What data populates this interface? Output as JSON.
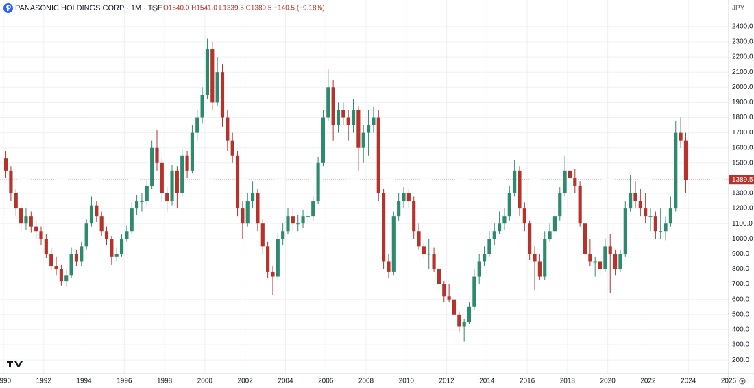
{
  "chart_data": {
    "type": "candlestick",
    "title": "PANASONIC HOLDINGS CORP · 1M · TSE",
    "ohlc_text": "O1540.0 H1541.0 L1339.5 C1389.5 −140.5 (−9.18%)",
    "currency": "JPY",
    "last_price": 1389.5,
    "up_color": "#2e8a6e",
    "down_color": "#b5332a",
    "grid": true,
    "xlim": [
      1989.83,
      2026
    ],
    "xticks": [
      1990,
      1992,
      1994,
      1996,
      1998,
      2000,
      2002,
      2004,
      2006,
      2008,
      2010,
      2012,
      2014,
      2016,
      2018,
      2020,
      2022,
      2024,
      2026
    ],
    "ylim": [
      110,
      2576
    ],
    "yticks": [
      {
        "value": 200,
        "label": "200.0"
      },
      {
        "value": 300,
        "label": "300.0"
      },
      {
        "value": 400,
        "label": "400.0"
      },
      {
        "value": 500,
        "label": "500.0"
      },
      {
        "value": 600,
        "label": "600.0"
      },
      {
        "value": 700,
        "label": "700.0"
      },
      {
        "value": 800,
        "label": "800.0"
      },
      {
        "value": 900,
        "label": "900.0"
      },
      {
        "value": 1000,
        "label": "1000.0"
      },
      {
        "value": 1100,
        "label": "1100.0"
      },
      {
        "value": 1200,
        "label": "1200.0"
      },
      {
        "value": 1300,
        "label": "1300.0"
      },
      {
        "value": 1400,
        "label": "1400.0"
      },
      {
        "value": 1500,
        "label": "1500.0"
      },
      {
        "value": 1600,
        "label": "1600.0"
      },
      {
        "value": 1700,
        "label": "1700.0"
      },
      {
        "value": 1800,
        "label": "1800.0"
      },
      {
        "value": 1900,
        "label": "1900.0"
      },
      {
        "value": 2000,
        "label": "2000.0"
      },
      {
        "value": 2100,
        "label": "2100.0"
      },
      {
        "value": 2200,
        "label": "2200.0"
      },
      {
        "value": 2300,
        "label": "2300.0"
      },
      {
        "value": 2400,
        "label": "2400.0"
      }
    ],
    "x": [
      1990,
      1990.25,
      1990.5,
      1990.75,
      1991,
      1991.25,
      1991.5,
      1991.75,
      1992,
      1992.25,
      1992.5,
      1992.75,
      1993,
      1993.25,
      1993.5,
      1993.75,
      1994,
      1994.25,
      1994.5,
      1994.75,
      1995,
      1995.25,
      1995.5,
      1995.75,
      1996,
      1996.25,
      1996.5,
      1996.75,
      1997,
      1997.25,
      1997.5,
      1997.75,
      1998,
      1998.25,
      1998.5,
      1998.75,
      1999,
      1999.25,
      1999.5,
      1999.75,
      2000,
      2000.25,
      2000.5,
      2000.75,
      2001,
      2001.25,
      2001.5,
      2001.75,
      2002,
      2002.25,
      2002.5,
      2002.75,
      2003,
      2003.25,
      2003.5,
      2003.75,
      2004,
      2004.25,
      2004.5,
      2004.75,
      2005,
      2005.25,
      2005.5,
      2005.75,
      2006,
      2006.25,
      2006.5,
      2006.75,
      2007,
      2007.25,
      2007.5,
      2007.75,
      2008,
      2008.25,
      2008.5,
      2008.75,
      2009,
      2009.25,
      2009.5,
      2009.75,
      2010,
      2010.25,
      2010.5,
      2010.75,
      2011,
      2011.25,
      2011.5,
      2011.75,
      2012,
      2012.25,
      2012.5,
      2012.75,
      2013,
      2013.25,
      2013.5,
      2013.75,
      2014,
      2014.25,
      2014.5,
      2014.75,
      2015,
      2015.25,
      2015.5,
      2015.75,
      2016,
      2016.25,
      2016.5,
      2016.75,
      2017,
      2017.25,
      2017.5,
      2017.75,
      2018,
      2018.25,
      2018.5,
      2018.75,
      2019,
      2019.25,
      2019.5,
      2019.75,
      2020,
      2020.25,
      2020.5,
      2020.75,
      2021,
      2021.25,
      2021.5,
      2021.75,
      2022,
      2022.25,
      2022.5,
      2022.75,
      2023,
      2023.25,
      2023.5,
      2023.75
    ],
    "ohlc": [
      [
        1530,
        1580,
        1400,
        1450
      ],
      [
        1450,
        1480,
        1250,
        1300
      ],
      [
        1300,
        1330,
        1150,
        1200
      ],
      [
        1200,
        1230,
        1050,
        1100
      ],
      [
        1100,
        1200,
        1060,
        1150
      ],
      [
        1150,
        1180,
        1040,
        1080
      ],
      [
        1080,
        1120,
        1000,
        1050
      ],
      [
        1050,
        1080,
        960,
        1000
      ],
      [
        1000,
        1030,
        870,
        900
      ],
      [
        900,
        940,
        790,
        820
      ],
      [
        820,
        880,
        760,
        800
      ],
      [
        800,
        830,
        690,
        720
      ],
      [
        720,
        800,
        680,
        760
      ],
      [
        760,
        940,
        740,
        900
      ],
      [
        900,
        930,
        820,
        850
      ],
      [
        850,
        980,
        820,
        950
      ],
      [
        950,
        1130,
        930,
        1100
      ],
      [
        1100,
        1280,
        1080,
        1220
      ],
      [
        1220,
        1250,
        1110,
        1150
      ],
      [
        1150,
        1180,
        1020,
        1050
      ],
      [
        1050,
        1080,
        960,
        1000
      ],
      [
        1000,
        1020,
        830,
        880
      ],
      [
        880,
        940,
        850,
        900
      ],
      [
        900,
        1030,
        880,
        1000
      ],
      [
        1000,
        1090,
        980,
        1050
      ],
      [
        1050,
        1240,
        1030,
        1200
      ],
      [
        1200,
        1290,
        1160,
        1250
      ],
      [
        1250,
        1300,
        1180,
        1250
      ],
      [
        1250,
        1390,
        1220,
        1350
      ],
      [
        1350,
        1650,
        1330,
        1600
      ],
      [
        1600,
        1720,
        1450,
        1500
      ],
      [
        1500,
        1530,
        1240,
        1300
      ],
      [
        1300,
        1340,
        1180,
        1250
      ],
      [
        1250,
        1490,
        1220,
        1450
      ],
      [
        1450,
        1480,
        1200,
        1300
      ],
      [
        1300,
        1590,
        1280,
        1550
      ],
      [
        1550,
        1580,
        1400,
        1450
      ],
      [
        1450,
        1750,
        1430,
        1700
      ],
      [
        1700,
        1850,
        1650,
        1800
      ],
      [
        1800,
        2000,
        1760,
        1950
      ],
      [
        1950,
        2320,
        1920,
        2250
      ],
      [
        2250,
        2300,
        1850,
        1900
      ],
      [
        1900,
        2200,
        1880,
        2100
      ],
      [
        2100,
        2150,
        1740,
        1800
      ],
      [
        1800,
        1850,
        1580,
        1650
      ],
      [
        1650,
        1700,
        1500,
        1550
      ],
      [
        1550,
        1580,
        1150,
        1200
      ],
      [
        1200,
        1250,
        1000,
        1100
      ],
      [
        1100,
        1300,
        1080,
        1250
      ],
      [
        1250,
        1380,
        1200,
        1300
      ],
      [
        1300,
        1330,
        1050,
        1100
      ],
      [
        1100,
        1130,
        900,
        950
      ],
      [
        950,
        980,
        740,
        780
      ],
      [
        780,
        820,
        630,
        750
      ],
      [
        750,
        1040,
        730,
        1000
      ],
      [
        1000,
        1100,
        960,
        1050
      ],
      [
        1050,
        1200,
        1030,
        1150
      ],
      [
        1150,
        1200,
        1050,
        1100
      ],
      [
        1100,
        1160,
        1050,
        1100
      ],
      [
        1100,
        1190,
        1070,
        1150
      ],
      [
        1150,
        1190,
        1100,
        1150
      ],
      [
        1150,
        1280,
        1120,
        1250
      ],
      [
        1250,
        1540,
        1230,
        1500
      ],
      [
        1500,
        1850,
        1480,
        1800
      ],
      [
        1800,
        2120,
        1780,
        2000
      ],
      [
        2000,
        2050,
        1650,
        1750
      ],
      [
        1750,
        1900,
        1700,
        1850
      ],
      [
        1850,
        1900,
        1750,
        1800
      ],
      [
        1800,
        1850,
        1650,
        1750
      ],
      [
        1750,
        1920,
        1700,
        1850
      ],
      [
        1850,
        1880,
        1450,
        1600
      ],
      [
        1600,
        1750,
        1500,
        1700
      ],
      [
        1700,
        1850,
        1550,
        1750
      ],
      [
        1750,
        1870,
        1700,
        1800
      ],
      [
        1800,
        1850,
        1250,
        1300
      ],
      [
        1300,
        1330,
        800,
        850
      ],
      [
        850,
        900,
        740,
        780
      ],
      [
        780,
        1180,
        760,
        1150
      ],
      [
        1150,
        1300,
        1120,
        1250
      ],
      [
        1250,
        1340,
        1200,
        1300
      ],
      [
        1300,
        1330,
        1200,
        1250
      ],
      [
        1250,
        1280,
        1000,
        1050
      ],
      [
        1050,
        1100,
        930,
        950
      ],
      [
        950,
        980,
        870,
        900
      ],
      [
        900,
        1000,
        800,
        900
      ],
      [
        900,
        940,
        780,
        800
      ],
      [
        800,
        820,
        650,
        700
      ],
      [
        700,
        720,
        580,
        620
      ],
      [
        620,
        700,
        580,
        600
      ],
      [
        600,
        620,
        480,
        500
      ],
      [
        500,
        520,
        380,
        420
      ],
      [
        420,
        470,
        320,
        450
      ],
      [
        450,
        580,
        440,
        550
      ],
      [
        550,
        800,
        530,
        750
      ],
      [
        750,
        900,
        700,
        850
      ],
      [
        850,
        950,
        820,
        900
      ],
      [
        900,
        1050,
        880,
        1000
      ],
      [
        1000,
        1100,
        960,
        1050
      ],
      [
        1050,
        1180,
        1030,
        1100
      ],
      [
        1100,
        1200,
        1060,
        1150
      ],
      [
        1150,
        1350,
        1120,
        1300
      ],
      [
        1300,
        1520,
        1280,
        1450
      ],
      [
        1450,
        1480,
        1150,
        1200
      ],
      [
        1200,
        1240,
        1050,
        1100
      ],
      [
        1100,
        1120,
        860,
        900
      ],
      [
        900,
        950,
        660,
        850
      ],
      [
        850,
        900,
        730,
        750
      ],
      [
        750,
        1050,
        730,
        1000
      ],
      [
        1000,
        1100,
        980,
        1050
      ],
      [
        1050,
        1200,
        1030,
        1150
      ],
      [
        1150,
        1340,
        1120,
        1300
      ],
      [
        1300,
        1550,
        1280,
        1450
      ],
      [
        1450,
        1500,
        1350,
        1400
      ],
      [
        1400,
        1460,
        1300,
        1350
      ],
      [
        1350,
        1380,
        1080,
        1100
      ],
      [
        1100,
        1120,
        850,
        900
      ],
      [
        900,
        1000,
        820,
        850
      ],
      [
        850,
        880,
        750,
        850
      ],
      [
        850,
        880,
        760,
        800
      ],
      [
        800,
        1000,
        780,
        950
      ],
      [
        950,
        1030,
        640,
        900
      ],
      [
        900,
        930,
        760,
        800
      ],
      [
        800,
        930,
        780,
        900
      ],
      [
        900,
        1250,
        880,
        1200
      ],
      [
        1200,
        1420,
        1180,
        1300
      ],
      [
        1300,
        1380,
        1200,
        1250
      ],
      [
        1250,
        1330,
        1150,
        1200
      ],
      [
        1200,
        1300,
        1100,
        1150
      ],
      [
        1150,
        1200,
        1050,
        1150
      ],
      [
        1150,
        1180,
        1000,
        1050
      ],
      [
        1050,
        1200,
        1000,
        1050
      ],
      [
        1050,
        1150,
        990,
        1100
      ],
      [
        1100,
        1280,
        1080,
        1200
      ],
      [
        1200,
        1780,
        1180,
        1700
      ],
      [
        1700,
        1800,
        1600,
        1650
      ],
      [
        1650,
        1700,
        1300,
        1389.5
      ]
    ]
  }
}
